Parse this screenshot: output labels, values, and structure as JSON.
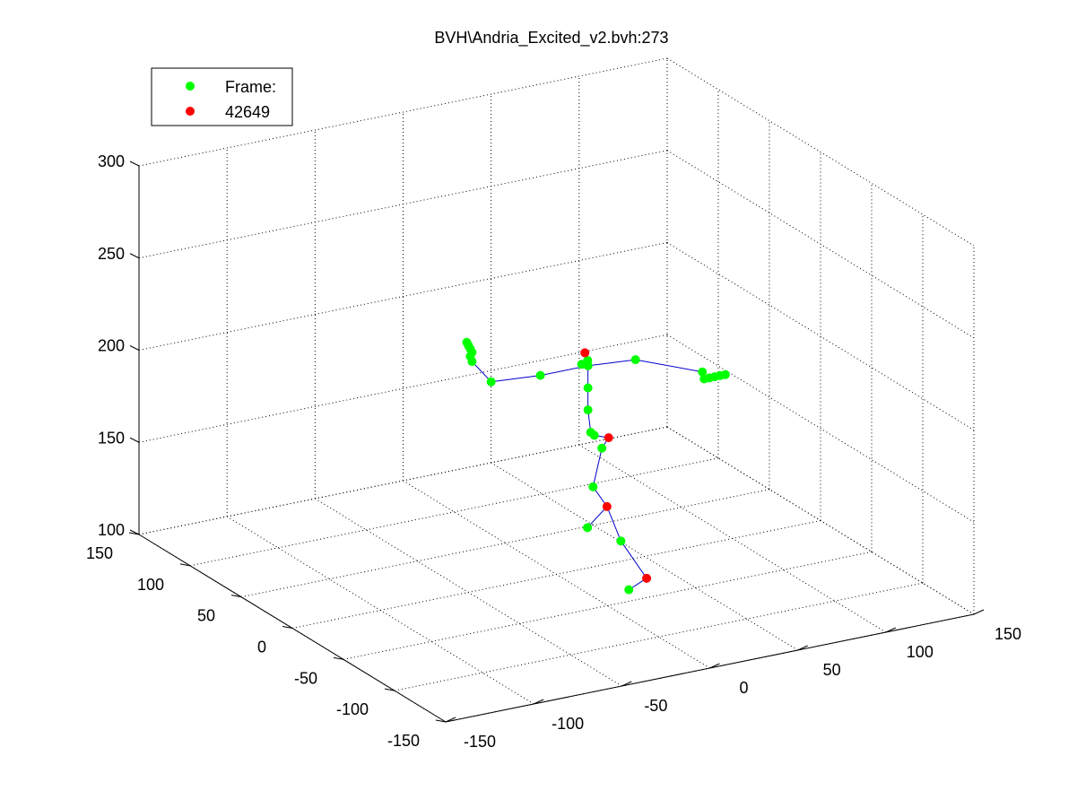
{
  "chart_data": {
    "type": "scatter",
    "title": "BVH\\Andria_Excited_v2.bvh:273",
    "legend": {
      "placement": "top-left",
      "entries": [
        {
          "label": "Frame:",
          "color": "#00ff00"
        },
        {
          "label": "42649",
          "color": "#ff0000"
        }
      ]
    },
    "axes": {
      "x": {
        "ticks": [
          -150,
          -100,
          -50,
          0,
          50,
          100,
          150
        ],
        "range": [
          -150,
          150
        ]
      },
      "y": {
        "ticks": [
          -150,
          -100,
          -50,
          0,
          50,
          100,
          150
        ],
        "range": [
          -150,
          150
        ]
      },
      "z": {
        "ticks": [
          100,
          150,
          200,
          250,
          300
        ],
        "range": [
          100,
          300
        ]
      }
    },
    "grid": true,
    "colors": {
      "joint": "#00ff00",
      "highlight": "#ff0000",
      "bone": "#0000cc"
    },
    "joints": [
      {
        "x": 15,
        "y": -45,
        "z": 104,
        "role": "green"
      },
      {
        "x": 28,
        "y": -40,
        "z": 106,
        "role": "red"
      },
      {
        "x": 6,
        "y": -20,
        "z": 131,
        "role": "green"
      },
      {
        "x": 25,
        "y": -20,
        "z": 120,
        "role": "green"
      },
      {
        "x": 20,
        "y": -15,
        "z": 138,
        "role": "red"
      },
      {
        "x": 15,
        "y": -10,
        "z": 148,
        "role": "green"
      },
      {
        "x": 20,
        "y": -10,
        "z": 168,
        "role": "green"
      },
      {
        "x": 25,
        "y": -8,
        "z": 172,
        "role": "red"
      },
      {
        "x": 18,
        "y": -6,
        "z": 174,
        "role": "green"
      },
      {
        "x": 16,
        "y": -6,
        "z": 176,
        "role": "green"
      },
      {
        "x": 15,
        "y": -5,
        "z": 188,
        "role": "green"
      },
      {
        "x": 15,
        "y": -5,
        "z": 200,
        "role": "green"
      },
      {
        "x": 15,
        "y": -5,
        "z": 212,
        "role": "green"
      },
      {
        "x": 12,
        "y": -4,
        "z": 213,
        "role": "green"
      },
      {
        "x": 16,
        "y": -3,
        "z": 214,
        "role": "green"
      },
      {
        "x": 15,
        "y": -2,
        "z": 218,
        "role": "red"
      },
      {
        "x": -12,
        "y": -5,
        "z": 212,
        "role": "green"
      },
      {
        "x": -40,
        "y": -5,
        "z": 214,
        "role": "green"
      },
      {
        "x": -52,
        "y": -7,
        "z": 228,
        "role": "green"
      },
      {
        "x": -53,
        "y": -7,
        "z": 231,
        "role": "green"
      },
      {
        "x": -52,
        "y": -7,
        "z": 233,
        "role": "green"
      },
      {
        "x": -53,
        "y": -7,
        "z": 235,
        "role": "green"
      },
      {
        "x": -54,
        "y": -7,
        "z": 237,
        "role": "green"
      },
      {
        "x": -55,
        "y": -7,
        "z": 239,
        "role": "green"
      },
      {
        "x": 42,
        "y": -5,
        "z": 210,
        "role": "green"
      },
      {
        "x": 80,
        "y": -5,
        "z": 196,
        "role": "green"
      },
      {
        "x": 81,
        "y": -5,
        "z": 192,
        "role": "green"
      },
      {
        "x": 84,
        "y": -5,
        "z": 192,
        "role": "green"
      },
      {
        "x": 87,
        "y": -5,
        "z": 192,
        "role": "green"
      },
      {
        "x": 90,
        "y": -5,
        "z": 192,
        "role": "green"
      },
      {
        "x": 93,
        "y": -5,
        "z": 192,
        "role": "green"
      }
    ],
    "bones": [
      [
        0,
        1
      ],
      [
        1,
        3
      ],
      [
        3,
        4
      ],
      [
        2,
        4
      ],
      [
        4,
        5
      ],
      [
        5,
        6
      ],
      [
        6,
        7
      ],
      [
        7,
        8
      ],
      [
        8,
        9
      ],
      [
        9,
        10
      ],
      [
        10,
        11
      ],
      [
        11,
        12
      ],
      [
        12,
        13
      ],
      [
        12,
        14
      ],
      [
        14,
        15
      ],
      [
        12,
        16
      ],
      [
        16,
        17
      ],
      [
        17,
        18
      ],
      [
        18,
        19
      ],
      [
        19,
        20
      ],
      [
        20,
        21
      ],
      [
        21,
        22
      ],
      [
        22,
        23
      ],
      [
        12,
        24
      ],
      [
        24,
        25
      ],
      [
        25,
        26
      ],
      [
        26,
        27
      ],
      [
        27,
        28
      ],
      [
        28,
        29
      ],
      [
        29,
        30
      ]
    ]
  }
}
